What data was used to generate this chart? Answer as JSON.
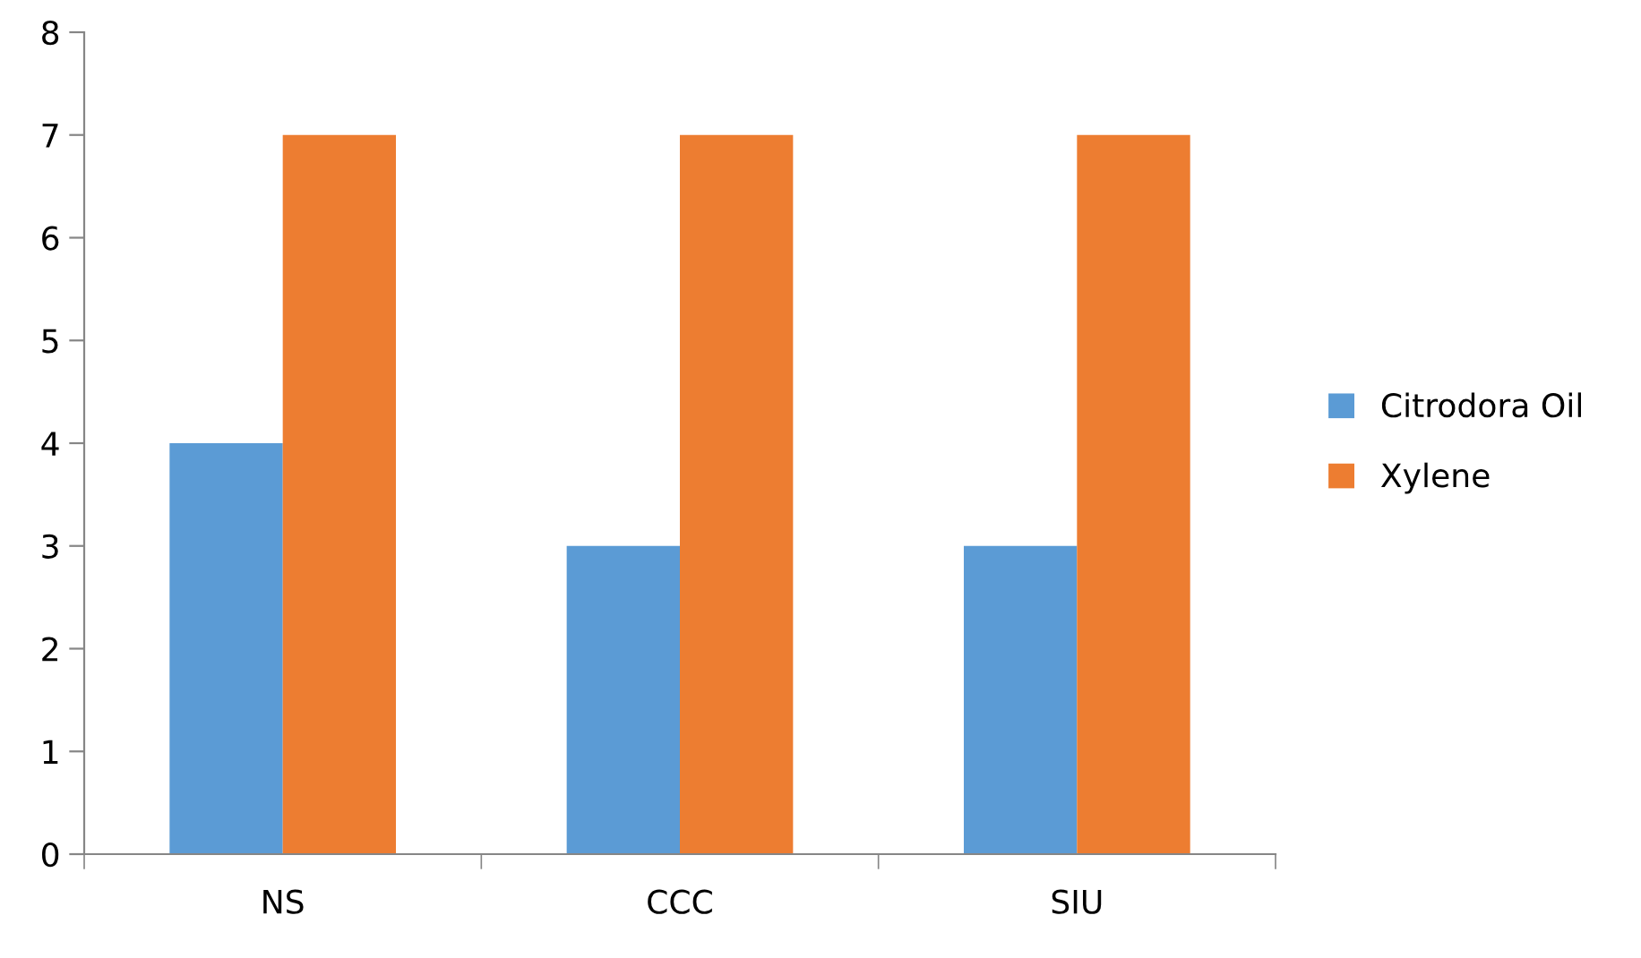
{
  "chart_data": {
    "type": "bar",
    "categories": [
      "NS",
      "CCC",
      "SIU"
    ],
    "series": [
      {
        "name": "Citrodora Oil",
        "color": "#5b9bd5",
        "values": [
          4,
          3,
          3
        ]
      },
      {
        "name": "Xylene",
        "color": "#ed7d31",
        "values": [
          7,
          7,
          7
        ]
      }
    ],
    "ylim": [
      0,
      8
    ],
    "yticks": [
      0,
      1,
      2,
      3,
      4,
      5,
      6,
      7,
      8
    ],
    "grid": false,
    "legend": "right"
  }
}
